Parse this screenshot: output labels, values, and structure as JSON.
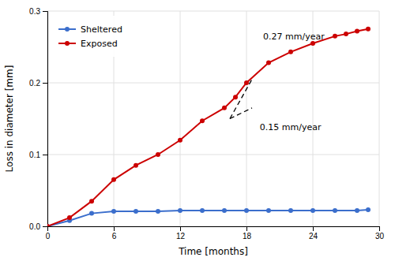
{
  "chart_data": {
    "type": "line",
    "x_label": "Time [months]",
    "y_label": "Loss in diameter [mm]",
    "xlim": [
      0,
      30
    ],
    "ylim": [
      0,
      0.3
    ],
    "xticks": [
      0,
      6,
      12,
      18,
      24,
      30
    ],
    "yticks": [
      {
        "value": 0,
        "label": "0.0"
      },
      0.1,
      0.2,
      0.3
    ],
    "grid": true,
    "legend": "top-left",
    "series": [
      {
        "name": "Sheltered",
        "color": "#3b6ecc",
        "marker": "circle",
        "line_style": "solid",
        "x": [
          0,
          2,
          4,
          6,
          8,
          10,
          12,
          14,
          16,
          18,
          20,
          22,
          24,
          26,
          28,
          29
        ],
        "values": [
          0,
          0.008,
          0.018,
          0.021,
          0.021,
          0.021,
          0.022,
          0.022,
          0.022,
          0.022,
          0.022,
          0.022,
          0.022,
          0.022,
          0.022,
          0.023
        ]
      },
      {
        "name": "Exposed",
        "color": "#cc0000",
        "marker": "circle",
        "line_style": "solid",
        "x": [
          0,
          2,
          4,
          6,
          8,
          10,
          12,
          14,
          16,
          17,
          18,
          20,
          22,
          24,
          26,
          27,
          28,
          29
        ],
        "values": [
          0,
          0.012,
          0.035,
          0.065,
          0.085,
          0.1,
          0.12,
          0.147,
          0.165,
          0.18,
          0.2,
          0.228,
          0.243,
          0.255,
          0.265,
          0.268,
          0.272,
          0.275
        ]
      },
      {
        "color": "black",
        "marker": "none",
        "line_style": "dashed",
        "x": [
          16.5,
          18.5
        ],
        "values": [
          0.15,
          0.205
        ]
      },
      {
        "color": "black",
        "marker": "none",
        "line_style": "dashed",
        "x": [
          16.5,
          18.5
        ],
        "values": [
          0.15,
          0.165
        ]
      }
    ],
    "annotations": [
      {
        "text": "0.27 mm/year",
        "x": 19.5,
        "y": 0.265
      },
      {
        "text": "0.15 mm/year",
        "x": 19.2,
        "y": 0.138
      }
    ]
  }
}
